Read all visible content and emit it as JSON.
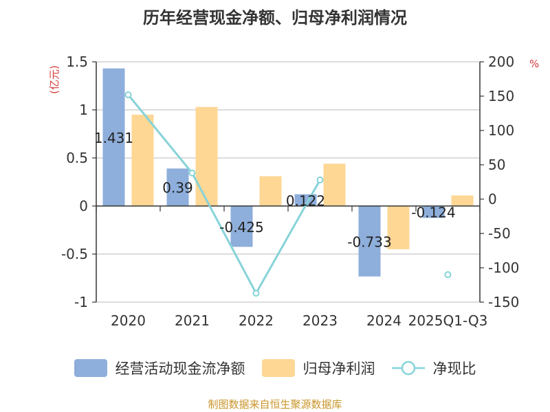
{
  "title": "历年经营现金净额、归母净利润情况",
  "source": "制图数据来自恒生聚源数据库",
  "colors": {
    "cash": "#8eaedb",
    "profit": "#fed795",
    "ratio": "#86d3d8",
    "unit": "#d63a3a",
    "source": "#c8952a"
  },
  "chart_data": {
    "type": "bar",
    "categories": [
      "2020",
      "2021",
      "2022",
      "2023",
      "2024",
      "2025Q1-Q3"
    ],
    "series": [
      {
        "name": "经营活动现金流净额",
        "kind": "bar",
        "axis": "left",
        "values": [
          1.431,
          0.39,
          -0.425,
          0.122,
          -0.733,
          -0.124
        ],
        "labels": [
          "1.431",
          "0.39",
          "-0.425",
          "0.122",
          "-0.733",
          "-0.124"
        ]
      },
      {
        "name": "归母净利润",
        "kind": "bar",
        "axis": "left",
        "values": [
          0.95,
          1.03,
          0.31,
          0.44,
          -0.45,
          0.11
        ]
      },
      {
        "name": "净现比",
        "kind": "line",
        "axis": "right",
        "values": [
          152,
          38,
          -137,
          28,
          null,
          -110
        ]
      }
    ],
    "left_axis": {
      "label": "(亿元)",
      "min": -1,
      "max": 1.5,
      "ticks": [
        1.5,
        1,
        0.5,
        0,
        -0.5,
        -1
      ],
      "tick_labels": [
        "1.5",
        "1",
        "0.5",
        "0",
        "-0.5",
        "-1"
      ]
    },
    "right_axis": {
      "label": "%",
      "min": -150,
      "max": 200,
      "ticks": [
        200,
        150,
        100,
        50,
        0,
        -50,
        -100,
        -150
      ],
      "tick_labels": [
        "200",
        "150",
        "100",
        "50",
        "0",
        "-50",
        "-100",
        "-150"
      ]
    },
    "grid": true,
    "legend_position": "bottom"
  }
}
